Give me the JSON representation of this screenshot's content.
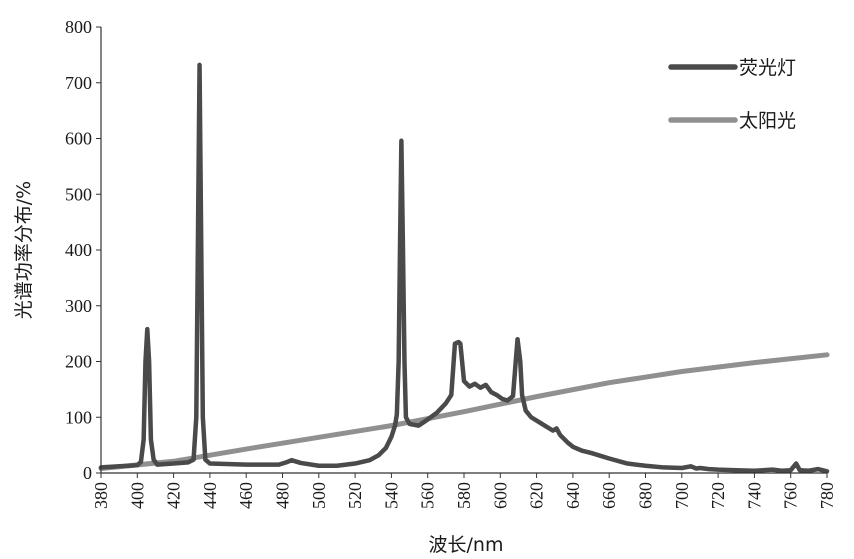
{
  "chart_data": {
    "type": "line",
    "xlabel": "波长/nm",
    "ylabel": "光谱功率分布/%",
    "xlim": [
      380,
      780
    ],
    "ylim": [
      0,
      800
    ],
    "x_ticks": [
      "380",
      "400",
      "420",
      "440",
      "460",
      "480",
      "500",
      "520",
      "540",
      "560",
      "580",
      "600",
      "620",
      "640",
      "660",
      "680",
      "700",
      "720",
      "740",
      "760",
      "780"
    ],
    "y_ticks": [
      "0",
      "100",
      "200",
      "300",
      "400",
      "500",
      "600",
      "700",
      "800"
    ],
    "grid": false,
    "legend_position": "top-right",
    "series": [
      {
        "name": "荧光灯",
        "color": "#4a4a4a",
        "points": [
          [
            380,
            10
          ],
          [
            400,
            14
          ],
          [
            402,
            20
          ],
          [
            403.5,
            60
          ],
          [
            404.5,
            200
          ],
          [
            405.5,
            258
          ],
          [
            406.5,
            200
          ],
          [
            407.5,
            60
          ],
          [
            409,
            24
          ],
          [
            411,
            15
          ],
          [
            420,
            17
          ],
          [
            428,
            19
          ],
          [
            431,
            24
          ],
          [
            432.5,
            100
          ],
          [
            433.5,
            450
          ],
          [
            434.3,
            732
          ],
          [
            435.1,
            450
          ],
          [
            436.1,
            100
          ],
          [
            437.5,
            24
          ],
          [
            440,
            17
          ],
          [
            460,
            15
          ],
          [
            478,
            15
          ],
          [
            482,
            19
          ],
          [
            485,
            23
          ],
          [
            490,
            18
          ],
          [
            500,
            13
          ],
          [
            510,
            13
          ],
          [
            520,
            17
          ],
          [
            528,
            23
          ],
          [
            533,
            32
          ],
          [
            537,
            45
          ],
          [
            540,
            65
          ],
          [
            542,
            85
          ],
          [
            543,
            105
          ],
          [
            544,
            200
          ],
          [
            544.8,
            420
          ],
          [
            545.5,
            596
          ],
          [
            546.3,
            420
          ],
          [
            547.2,
            200
          ],
          [
            548,
            100
          ],
          [
            550,
            88
          ],
          [
            555,
            85
          ],
          [
            560,
            96
          ],
          [
            565,
            108
          ],
          [
            570,
            125
          ],
          [
            573,
            140
          ],
          [
            575,
            232
          ],
          [
            577,
            235
          ],
          [
            578,
            232
          ],
          [
            580,
            165
          ],
          [
            583,
            155
          ],
          [
            586,
            160
          ],
          [
            589,
            153
          ],
          [
            592,
            158
          ],
          [
            595,
            145
          ],
          [
            598,
            140
          ],
          [
            601,
            133
          ],
          [
            604,
            130
          ],
          [
            607,
            138
          ],
          [
            608.5,
            200
          ],
          [
            609.5,
            240
          ],
          [
            611,
            200
          ],
          [
            612,
            140
          ],
          [
            614,
            112
          ],
          [
            617,
            100
          ],
          [
            621,
            92
          ],
          [
            625,
            84
          ],
          [
            629,
            76
          ],
          [
            631,
            80
          ],
          [
            633,
            68
          ],
          [
            637,
            55
          ],
          [
            640,
            47
          ],
          [
            645,
            40
          ],
          [
            650,
            36
          ],
          [
            660,
            26
          ],
          [
            670,
            17
          ],
          [
            680,
            13
          ],
          [
            690,
            10
          ],
          [
            700,
            9
          ],
          [
            705,
            12
          ],
          [
            708,
            8
          ],
          [
            710,
            9
          ],
          [
            715,
            7
          ],
          [
            720,
            6
          ],
          [
            730,
            5
          ],
          [
            740,
            4
          ],
          [
            750,
            6
          ],
          [
            755,
            4
          ],
          [
            760,
            5
          ],
          [
            763,
            17
          ],
          [
            765,
            5
          ],
          [
            770,
            4
          ],
          [
            775,
            7
          ],
          [
            780,
            3
          ]
        ]
      },
      {
        "name": "太阳光",
        "color": "#909090",
        "points": [
          [
            380,
            8
          ],
          [
            420,
            21
          ],
          [
            460,
            43
          ],
          [
            500,
            64
          ],
          [
            540,
            85
          ],
          [
            580,
            110
          ],
          [
            620,
            137
          ],
          [
            660,
            162
          ],
          [
            700,
            182
          ],
          [
            740,
            198
          ],
          [
            780,
            212
          ]
        ]
      }
    ]
  }
}
